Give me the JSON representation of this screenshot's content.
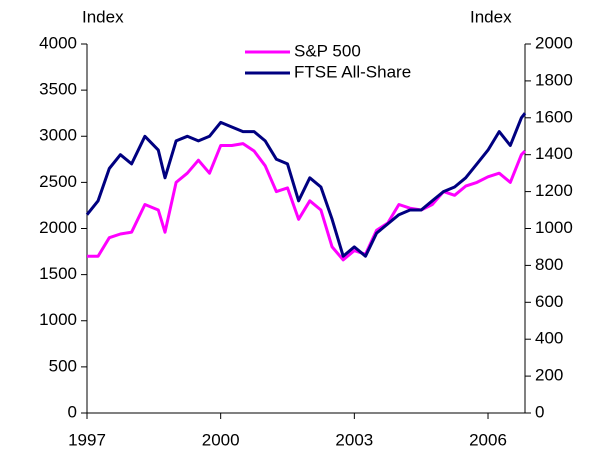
{
  "chart_data": {
    "type": "line",
    "y_label": "Index",
    "y2_label": "Index",
    "x": [
      1997.0,
      1997.25,
      1997.5,
      1997.75,
      1998.0,
      1998.3,
      1998.6,
      1998.75,
      1999.0,
      1999.25,
      1999.5,
      1999.75,
      2000.0,
      2000.25,
      2000.5,
      2000.75,
      2001.0,
      2001.25,
      2001.5,
      2001.75,
      2002.0,
      2002.25,
      2002.5,
      2002.75,
      2003.0,
      2003.25,
      2003.5,
      2003.75,
      2004.0,
      2004.25,
      2004.5,
      2004.75,
      2005.0,
      2005.25,
      2005.5,
      2005.75,
      2006.0,
      2006.25,
      2006.5,
      2006.75,
      2006.83
    ],
    "series": [
      {
        "name": "S&P 500",
        "color": "#ff00ff",
        "axis": "y2",
        "values": [
          850,
          850,
          950,
          970,
          980,
          1130,
          1100,
          980,
          1250,
          1300,
          1370,
          1300,
          1450,
          1450,
          1460,
          1420,
          1340,
          1200,
          1220,
          1050,
          1150,
          1100,
          900,
          830,
          880,
          860,
          990,
          1030,
          1130,
          1110,
          1100,
          1130,
          1200,
          1180,
          1230,
          1250,
          1280,
          1300,
          1250,
          1400,
          1420
        ]
      },
      {
        "name": "FTSE All-Share",
        "color": "#000080",
        "values": [
          2150,
          2300,
          2650,
          2800,
          2700,
          3000,
          2850,
          2550,
          2950,
          3000,
          2950,
          3000,
          3150,
          3100,
          3050,
          3050,
          2950,
          2750,
          2700,
          2300,
          2550,
          2450,
          2100,
          1700,
          1800,
          1700,
          1950,
          2050,
          2150,
          2200,
          2200,
          2300,
          2400,
          2450,
          2550,
          2700,
          2850,
          3050,
          2900,
          3200,
          3250
        ]
      }
    ],
    "xlim": [
      1997,
      2006.83
    ],
    "xticks": [
      1997,
      2000,
      2003,
      2006
    ],
    "ylim": [
      0,
      4000
    ],
    "yticks": [
      0,
      500,
      1000,
      1500,
      2000,
      2500,
      3000,
      3500,
      4000
    ],
    "y2lim": [
      0,
      2000
    ],
    "y2ticks": [
      0,
      200,
      400,
      600,
      800,
      1000,
      1200,
      1400,
      1600,
      1800,
      2000
    ]
  }
}
